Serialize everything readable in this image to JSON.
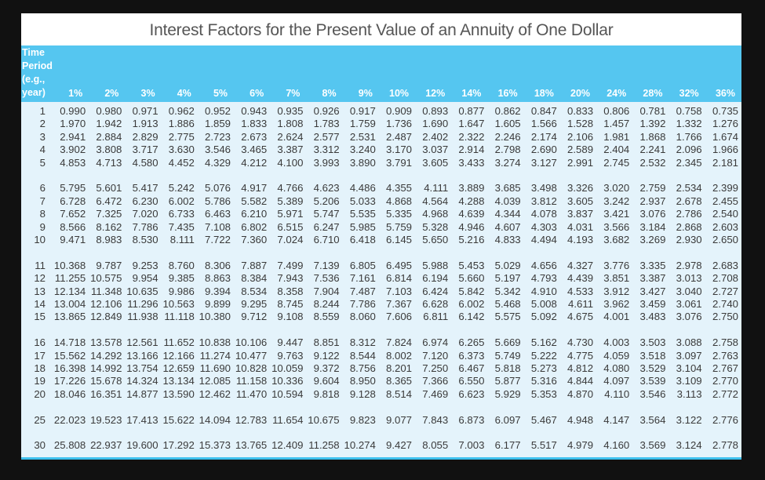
{
  "title": "Interest Factors for the Present Value of an Annuity of One Dollar",
  "colors": {
    "header_bg": "#55c6f0",
    "body_bg": "#e4f3fb",
    "header_text": "#ffffff"
  },
  "header": {
    "period_label_lines": [
      "Time",
      "Period",
      "(e.g.,",
      "year)"
    ],
    "rates": [
      "1%",
      "2%",
      "3%",
      "4%",
      "5%",
      "6%",
      "7%",
      "8%",
      "9%",
      "10%",
      "12%",
      "14%",
      "16%",
      "18%",
      "20%",
      "24%",
      "28%",
      "32%",
      "36%"
    ]
  },
  "groups": [
    [
      {
        "period": "1",
        "values": [
          "0.990",
          "0.980",
          "0.971",
          "0.962",
          "0.952",
          "0.943",
          "0.935",
          "0.926",
          "0.917",
          "0.909",
          "0.893",
          "0.877",
          "0.862",
          "0.847",
          "0.833",
          "0.806",
          "0.781",
          "0.758",
          "0.735"
        ]
      },
      {
        "period": "2",
        "values": [
          "1.970",
          "1.942",
          "1.913",
          "1.886",
          "1.859",
          "1.833",
          "1.808",
          "1.783",
          "1.759",
          "1.736",
          "1.690",
          "1.647",
          "1.605",
          "1.566",
          "1.528",
          "1.457",
          "1.392",
          "1.332",
          "1.276"
        ]
      },
      {
        "period": "3",
        "values": [
          "2.941",
          "2.884",
          "2.829",
          "2.775",
          "2.723",
          "2.673",
          "2.624",
          "2.577",
          "2.531",
          "2.487",
          "2.402",
          "2.322",
          "2.246",
          "2.174",
          "2.106",
          "1.981",
          "1.868",
          "1.766",
          "1.674"
        ]
      },
      {
        "period": "4",
        "values": [
          "3.902",
          "3.808",
          "3.717",
          "3.630",
          "3.546",
          "3.465",
          "3.387",
          "3.312",
          "3.240",
          "3.170",
          "3.037",
          "2.914",
          "2.798",
          "2.690",
          "2.589",
          "2.404",
          "2.241",
          "2.096",
          "1.966"
        ]
      },
      {
        "period": "5",
        "values": [
          "4.853",
          "4.713",
          "4.580",
          "4.452",
          "4.329",
          "4.212",
          "4.100",
          "3.993",
          "3.890",
          "3.791",
          "3.605",
          "3.433",
          "3.274",
          "3.127",
          "2.991",
          "2.745",
          "2.532",
          "2.345",
          "2.181"
        ]
      }
    ],
    [
      {
        "period": "6",
        "values": [
          "5.795",
          "5.601",
          "5.417",
          "5.242",
          "5.076",
          "4.917",
          "4.766",
          "4.623",
          "4.486",
          "4.355",
          "4.111",
          "3.889",
          "3.685",
          "3.498",
          "3.326",
          "3.020",
          "2.759",
          "2.534",
          "2.399"
        ]
      },
      {
        "period": "7",
        "values": [
          "6.728",
          "6.472",
          "6.230",
          "6.002",
          "5.786",
          "5.582",
          "5.389",
          "5.206",
          "5.033",
          "4.868",
          "4.564",
          "4.288",
          "4.039",
          "3.812",
          "3.605",
          "3.242",
          "2.937",
          "2.678",
          "2.455"
        ]
      },
      {
        "period": "8",
        "values": [
          "7.652",
          "7.325",
          "7.020",
          "6.733",
          "6.463",
          "6.210",
          "5.971",
          "5.747",
          "5.535",
          "5.335",
          "4.968",
          "4.639",
          "4.344",
          "4.078",
          "3.837",
          "3.421",
          "3.076",
          "2.786",
          "2.540"
        ]
      },
      {
        "period": "9",
        "values": [
          "8.566",
          "8.162",
          "7.786",
          "7.435",
          "7.108",
          "6.802",
          "6.515",
          "6.247",
          "5.985",
          "5.759",
          "5.328",
          "4.946",
          "4.607",
          "4.303",
          "4.031",
          "3.566",
          "3.184",
          "2.868",
          "2.603"
        ]
      },
      {
        "period": "10",
        "values": [
          "9.471",
          "8.983",
          "8.530",
          "8.111",
          "7.722",
          "7.360",
          "7.024",
          "6.710",
          "6.418",
          "6.145",
          "5.650",
          "5.216",
          "4.833",
          "4.494",
          "4.193",
          "3.682",
          "3.269",
          "2.930",
          "2.650"
        ]
      }
    ],
    [
      {
        "period": "11",
        "values": [
          "10.368",
          "9.787",
          "9.253",
          "8.760",
          "8.306",
          "7.887",
          "7.499",
          "7.139",
          "6.805",
          "6.495",
          "5.988",
          "5.453",
          "5.029",
          "4.656",
          "4.327",
          "3.776",
          "3.335",
          "2.978",
          "2.683"
        ]
      },
      {
        "period": "12",
        "values": [
          "11.255",
          "10.575",
          "9.954",
          "9.385",
          "8.863",
          "8.384",
          "7.943",
          "7.536",
          "7.161",
          "6.814",
          "6.194",
          "5.660",
          "5.197",
          "4.793",
          "4.439",
          "3.851",
          "3.387",
          "3.013",
          "2.708"
        ]
      },
      {
        "period": "13",
        "values": [
          "12.134",
          "11.348",
          "10.635",
          "9.986",
          "9.394",
          "8.534",
          "8.358",
          "7.904",
          "7.487",
          "7.103",
          "6.424",
          "5.842",
          "5.342",
          "4.910",
          "4.533",
          "3.912",
          "3.427",
          "3.040",
          "2.727"
        ]
      },
      {
        "period": "14",
        "values": [
          "13.004",
          "12.106",
          "11.296",
          "10.563",
          "9.899",
          "9.295",
          "8.745",
          "8.244",
          "7.786",
          "7.367",
          "6.628",
          "6.002",
          "5.468",
          "5.008",
          "4.611",
          "3.962",
          "3.459",
          "3.061",
          "2.740"
        ]
      },
      {
        "period": "15",
        "values": [
          "13.865",
          "12.849",
          "11.938",
          "11.118",
          "10.380",
          "9.712",
          "9.108",
          "8.559",
          "8.060",
          "7.606",
          "6.811",
          "6.142",
          "5.575",
          "5.092",
          "4.675",
          "4.001",
          "3.483",
          "3.076",
          "2.750"
        ]
      }
    ],
    [
      {
        "period": "16",
        "values": [
          "14.718",
          "13.578",
          "12.561",
          "11.652",
          "10.838",
          "10.106",
          "9.447",
          "8.851",
          "8.312",
          "7.824",
          "6.974",
          "6.265",
          "5.669",
          "5.162",
          "4.730",
          "4.003",
          "3.503",
          "3.088",
          "2.758"
        ]
      },
      {
        "period": "17",
        "values": [
          "15.562",
          "14.292",
          "13.166",
          "12.166",
          "11.274",
          "10.477",
          "9.763",
          "9.122",
          "8.544",
          "8.002",
          "7.120",
          "6.373",
          "5.749",
          "5.222",
          "4.775",
          "4.059",
          "3.518",
          "3.097",
          "2.763"
        ]
      },
      {
        "period": "18",
        "values": [
          "16.398",
          "14.992",
          "13.754",
          "12.659",
          "11.690",
          "10.828",
          "10.059",
          "9.372",
          "8.756",
          "8.201",
          "7.250",
          "6.467",
          "5.818",
          "5.273",
          "4.812",
          "4.080",
          "3.529",
          "3.104",
          "2.767"
        ]
      },
      {
        "period": "19",
        "values": [
          "17.226",
          "15.678",
          "14.324",
          "13.134",
          "12.085",
          "11.158",
          "10.336",
          "9.604",
          "8.950",
          "8.365",
          "7.366",
          "6.550",
          "5.877",
          "5.316",
          "4.844",
          "4.097",
          "3.539",
          "3.109",
          "2.770"
        ]
      },
      {
        "period": "20",
        "values": [
          "18.046",
          "16.351",
          "14.877",
          "13.590",
          "12.462",
          "11.470",
          "10.594",
          "9.818",
          "9.128",
          "8.514",
          "7.469",
          "6.623",
          "5.929",
          "5.353",
          "4.870",
          "4.110",
          "3.546",
          "3.113",
          "2.772"
        ]
      }
    ],
    [
      {
        "period": "25",
        "values": [
          "22.023",
          "19.523",
          "17.413",
          "15.622",
          "14.094",
          "12.783",
          "11.654",
          "10.675",
          "9.823",
          "9.077",
          "7.843",
          "6.873",
          "6.097",
          "5.467",
          "4.948",
          "4.147",
          "3.564",
          "3.122",
          "2.776"
        ]
      }
    ],
    [
      {
        "period": "30",
        "values": [
          "25.808",
          "22.937",
          "19.600",
          "17.292",
          "15.373",
          "13.765",
          "12.409",
          "11.258",
          "10.274",
          "9.427",
          "8.055",
          "7.003",
          "6.177",
          "5.517",
          "4.979",
          "4.160",
          "3.569",
          "3.124",
          "2.778"
        ]
      }
    ]
  ]
}
